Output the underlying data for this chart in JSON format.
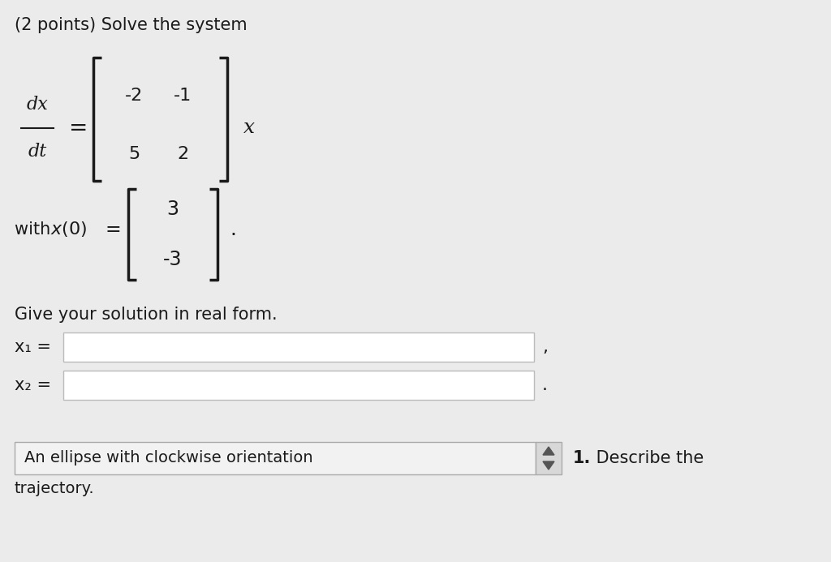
{
  "background_color": "#ebebeb",
  "title_text": "(2 points) Solve the system",
  "matrix_r1": [
    "-2",
    "-1"
  ],
  "matrix_r2": [
    "5",
    "2"
  ],
  "ic_values": [
    "3",
    "-3"
  ],
  "give_solution_text": "Give your solution in real form.",
  "x1_label": "x₁ =",
  "x2_label": "x₂ =",
  "dropdown_text": "An ellipse with clockwise orientation",
  "num1_bold": "1.",
  "describe_rest": " Describe the",
  "trajectory_text": "trajectory.",
  "text_color": "#1a1a1a",
  "input_bg": "#ffffff",
  "input_border": "#bbbbbb",
  "dropdown_bg": "#f2f2f2",
  "dropdown_border": "#aaaaaa",
  "spinner_bg": "#d8d8d8",
  "bracket_lw": 2.5,
  "title_fontsize": 15,
  "body_fontsize": 15,
  "matrix_fontsize": 16,
  "label_fontsize": 15,
  "small_fontsize": 14
}
